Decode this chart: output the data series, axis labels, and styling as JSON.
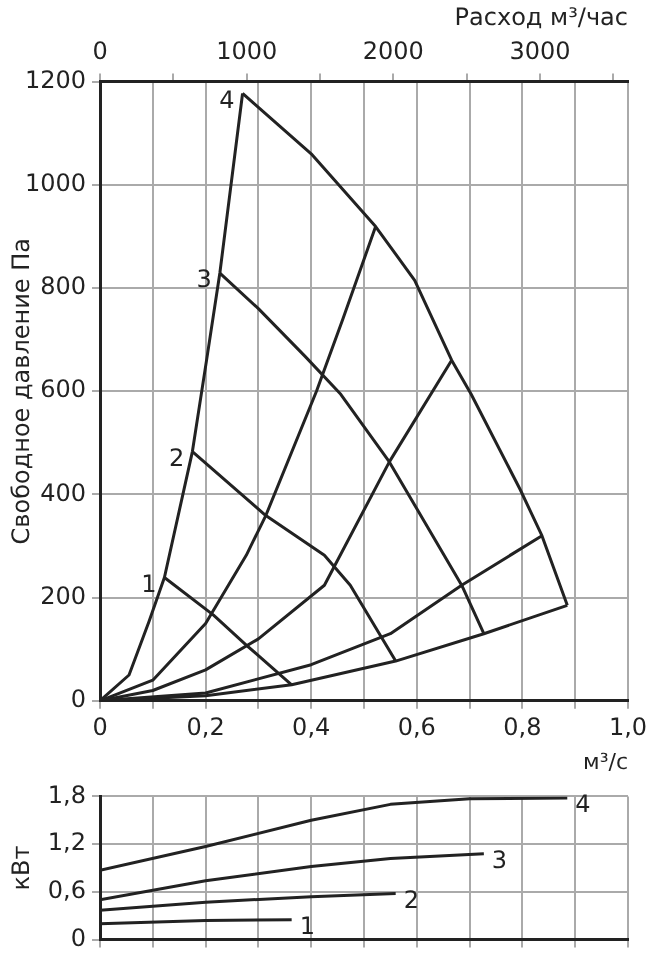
{
  "chart_data": [
    {
      "type": "line",
      "xlabel": "м³/с",
      "ylabel": "Свободное давление Па",
      "x2label": "Расход м³/час",
      "xlim": [
        0,
        1
      ],
      "xticks": [
        0,
        {
          "value": 0.1,
          "label": null
        },
        {
          "value": 0.2,
          "label": "0,2"
        },
        {
          "value": 0.3,
          "label": null
        },
        {
          "value": 0.4,
          "label": "0,4"
        },
        {
          "value": 0.5,
          "label": null
        },
        {
          "value": 0.6,
          "label": "0,6"
        },
        {
          "value": 0.7,
          "label": null
        },
        {
          "value": 0.8,
          "label": "0,8"
        },
        {
          "value": 0.9,
          "label": null
        },
        {
          "value": 1,
          "label": "1,0"
        }
      ],
      "x2lim": [
        0,
        3600
      ],
      "x2ticks": [
        0,
        {
          "value": 500,
          "label": null
        },
        1000,
        {
          "value": 1500,
          "label": null
        },
        2000,
        {
          "value": 2500,
          "label": null
        },
        3000,
        {
          "value": 3500,
          "label": null
        }
      ],
      "ylim": [
        0,
        1200
      ],
      "yticks": [
        0,
        200,
        400,
        600,
        800,
        1000,
        1200
      ],
      "grid": true,
      "legend": false,
      "marker": "none",
      "series": [
        {
          "name": "1",
          "color": "#222222",
          "x": [
            0.122,
            0.215,
            0.277,
            0.363
          ],
          "values": [
            239,
            166,
            108,
            31
          ]
        },
        {
          "name": "2",
          "color": "#222222",
          "x": [
            0.175,
            0.314,
            0.425,
            0.474,
            0.56
          ],
          "values": [
            483,
            359,
            282,
            224,
            77
          ]
        },
        {
          "name": "3",
          "color": "#222222",
          "x": [
            0.227,
            0.3,
            0.388,
            0.456,
            0.548,
            0.685,
            0.727
          ],
          "values": [
            829,
            760,
            668,
            594,
            463,
            224,
            130
          ]
        },
        {
          "name": "4",
          "color": "#222222",
          "x": [
            0.27,
            0.4,
            0.522,
            0.596,
            0.666,
            0.703,
            0.796,
            0.837,
            0.885
          ],
          "values": [
            1177,
            1060,
            919,
            815,
            660,
            594,
            409,
            320,
            185
          ]
        },
        {
          "color": "#222222",
          "x": [
            0,
            0.055,
            0.093,
            0.122,
            0.175,
            0.203,
            0.227,
            0.27
          ],
          "values": [
            0,
            50,
            154,
            239,
            483,
            668,
            829,
            1177
          ]
        },
        {
          "color": "#222222",
          "x": [
            0,
            0.1,
            0.2,
            0.277,
            0.314,
            0.41,
            0.46,
            0.522
          ],
          "values": [
            0,
            40,
            150,
            282,
            359,
            600,
            740,
            919
          ]
        },
        {
          "color": "#222222",
          "x": [
            0,
            0.1,
            0.2,
            0.3,
            0.425,
            0.548,
            0.666
          ],
          "values": [
            0,
            20,
            60,
            120,
            224,
            463,
            660
          ]
        },
        {
          "color": "#222222",
          "x": [
            0,
            0.2,
            0.4,
            0.55,
            0.685,
            0.837
          ],
          "values": [
            0,
            15,
            70,
            130,
            224,
            320
          ]
        },
        {
          "color": "#222222",
          "x": [
            0,
            0.2,
            0.363,
            0.56,
            0.727,
            0.885
          ],
          "values": [
            0,
            10,
            31,
            77,
            130,
            185
          ]
        }
      ]
    },
    {
      "type": "line",
      "ylabel": "кВт",
      "xlim": [
        0,
        1
      ],
      "xticks": [
        0,
        {
          "value": 0.1,
          "label": null
        },
        {
          "value": 0.2,
          "label": null
        },
        {
          "value": 0.3,
          "label": null
        },
        {
          "value": 0.4,
          "label": null
        },
        {
          "value": 0.5,
          "label": null
        },
        {
          "value": 0.6,
          "label": null
        },
        {
          "value": 0.7,
          "label": null
        },
        {
          "value": 0.8,
          "label": null
        },
        {
          "value": 0.9,
          "label": null
        },
        {
          "value": 1,
          "label": null
        }
      ],
      "ylim": [
        0,
        1.8
      ],
      "yticks": [
        0,
        {
          "value": 0.6,
          "label": "0,6"
        },
        {
          "value": 1.2,
          "label": "1,2"
        },
        {
          "value": 1.8,
          "label": "1,8"
        }
      ],
      "tick_labels": "y",
      "grid": true,
      "legend": false,
      "marker": "none",
      "series": [
        {
          "name": "1",
          "color": "#222222",
          "x": [
            0,
            0.2,
            0.363
          ],
          "values": [
            0.2,
            0.24,
            0.25
          ]
        },
        {
          "name": "2",
          "color": "#222222",
          "x": [
            0,
            0.2,
            0.4,
            0.56
          ],
          "values": [
            0.37,
            0.47,
            0.54,
            0.58
          ]
        },
        {
          "name": "3",
          "color": "#222222",
          "x": [
            0,
            0.2,
            0.4,
            0.55,
            0.727
          ],
          "values": [
            0.5,
            0.74,
            0.92,
            1.02,
            1.08
          ]
        },
        {
          "name": "4",
          "color": "#222222",
          "x": [
            0,
            0.2,
            0.4,
            0.55,
            0.7,
            0.885
          ],
          "values": [
            0.87,
            1.17,
            1.5,
            1.7,
            1.77,
            1.78
          ]
        }
      ]
    }
  ]
}
